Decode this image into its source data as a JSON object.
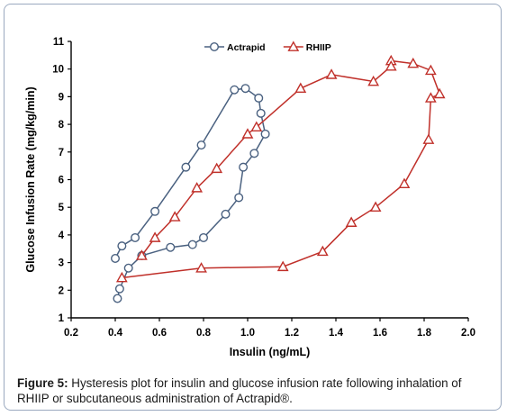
{
  "chart_data": {
    "type": "scatter",
    "title": "",
    "xlabel": "Insulin (ng/mL)",
    "ylabel": "Glucose Infusion Rate (mg/kg/min)",
    "xlim": [
      0.2,
      2.0
    ],
    "ylim": [
      1,
      11
    ],
    "x_ticks": [
      "0.2",
      "0.4",
      "0.6",
      "0.8",
      "1.0",
      "1.2",
      "1.4",
      "1.6",
      "1.8",
      "2.0"
    ],
    "y_ticks": [
      "1",
      "2",
      "3",
      "4",
      "5",
      "6",
      "7",
      "8",
      "9",
      "10",
      "11"
    ],
    "grid": false,
    "legend_position": "top-center",
    "series": [
      {
        "name": "Actrapid",
        "color": "#4a6180",
        "marker": "circle",
        "points": [
          [
            0.41,
            1.7
          ],
          [
            0.42,
            2.05
          ],
          [
            0.46,
            2.8
          ],
          [
            0.52,
            3.25
          ],
          [
            0.65,
            3.55
          ],
          [
            0.75,
            3.65
          ],
          [
            0.8,
            3.9
          ],
          [
            0.9,
            4.75
          ],
          [
            0.96,
            5.35
          ],
          [
            0.98,
            6.45
          ],
          [
            1.03,
            6.95
          ],
          [
            1.08,
            7.65
          ],
          [
            1.06,
            8.4
          ],
          [
            1.05,
            8.95
          ],
          [
            0.99,
            9.3
          ],
          [
            0.94,
            9.25
          ],
          [
            0.79,
            7.25
          ],
          [
            0.72,
            6.45
          ],
          [
            0.58,
            4.85
          ],
          [
            0.49,
            3.9
          ],
          [
            0.43,
            3.6
          ],
          [
            0.4,
            3.15
          ]
        ]
      },
      {
        "name": "RHIIP",
        "color": "#c0302a",
        "marker": "triangle",
        "points": [
          [
            0.43,
            2.45
          ],
          [
            0.79,
            2.8
          ],
          [
            1.16,
            2.85
          ],
          [
            1.34,
            3.4
          ],
          [
            1.47,
            4.45
          ],
          [
            1.58,
            5.0
          ],
          [
            1.71,
            5.85
          ],
          [
            1.82,
            7.45
          ],
          [
            1.83,
            8.95
          ],
          [
            1.87,
            9.1
          ],
          [
            1.83,
            9.95
          ],
          [
            1.75,
            10.2
          ],
          [
            1.65,
            10.3
          ],
          [
            1.65,
            10.1
          ],
          [
            1.57,
            9.55
          ],
          [
            1.38,
            9.8
          ],
          [
            1.24,
            9.3
          ],
          [
            1.04,
            7.9
          ],
          [
            1.0,
            7.65
          ],
          [
            0.86,
            6.4
          ],
          [
            0.77,
            5.7
          ],
          [
            0.67,
            4.65
          ],
          [
            0.58,
            3.9
          ],
          [
            0.52,
            3.25
          ]
        ]
      }
    ]
  },
  "caption": {
    "label": "Figure 5:",
    "text": " Hysteresis plot for insulin and glucose infusion rate following inhalation of RHIIP or subcutaneous administration of Actrapid®."
  }
}
